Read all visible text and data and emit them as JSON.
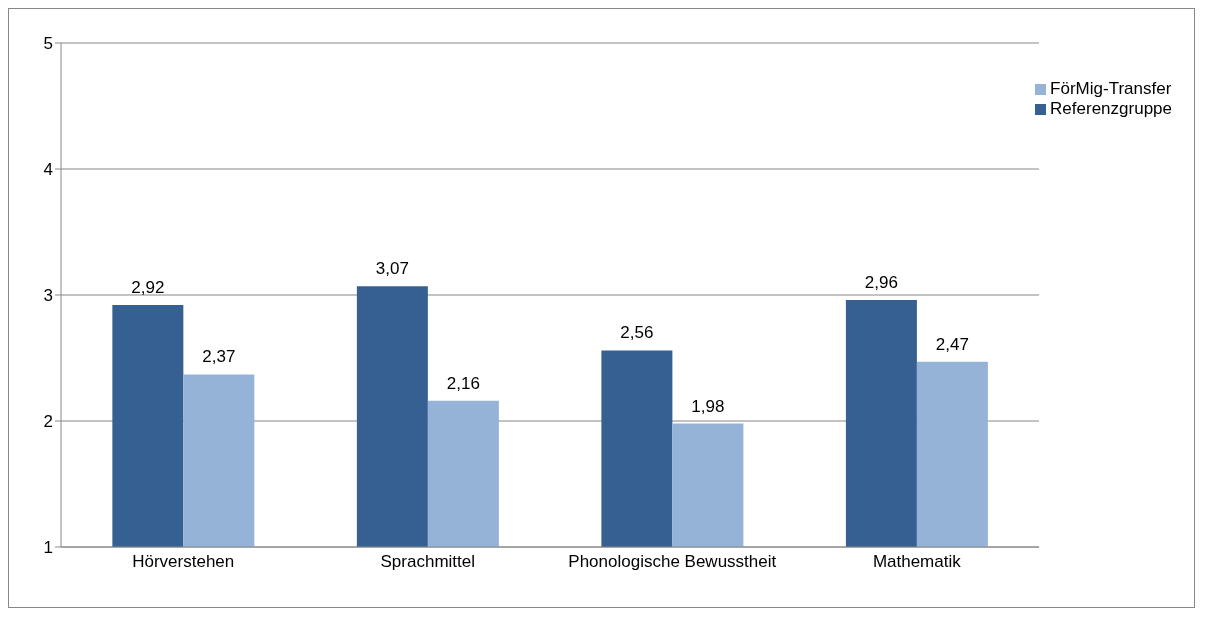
{
  "chart_data": {
    "type": "bar",
    "categories": [
      "Hörverstehen",
      "Sprachmittel",
      "Phonologische Bewusstheit",
      "Mathematik"
    ],
    "series": [
      {
        "name": "Referenzgruppe",
        "color": "#376092",
        "values": [
          2.92,
          3.07,
          2.56,
          2.96
        ],
        "value_labels": [
          "2,92",
          "3,07",
          "2,56",
          "2,96"
        ]
      },
      {
        "name": "FörMig-Transfer",
        "color": "#95b3d7",
        "values": [
          2.37,
          2.16,
          1.98,
          2.47
        ],
        "value_labels": [
          "2,37",
          "2,16",
          "1,98",
          "2,47"
        ]
      }
    ],
    "ylim": [
      1,
      5
    ],
    "yticks": [
      1,
      2,
      3,
      4,
      5
    ],
    "grid": "y",
    "legend": "top right"
  }
}
